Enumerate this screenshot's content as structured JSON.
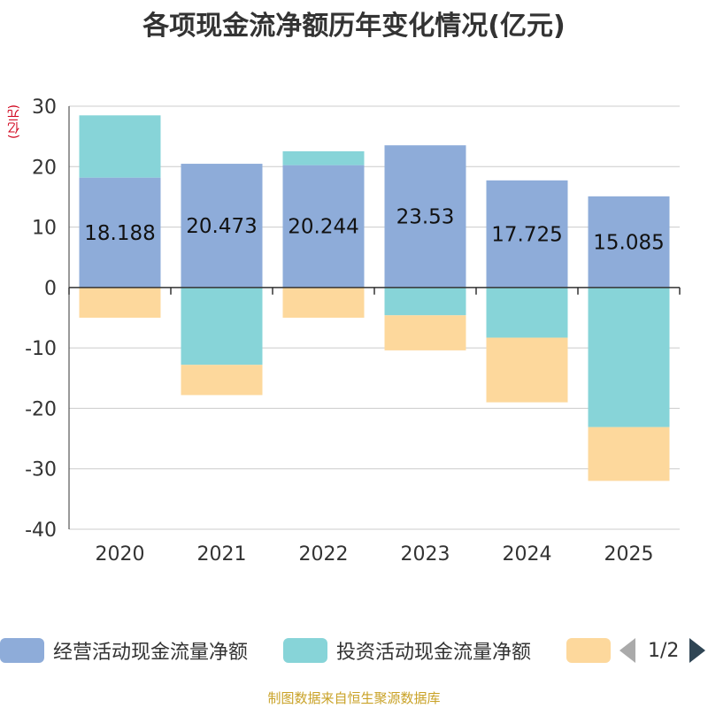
{
  "chart_data": {
    "type": "bar",
    "stacked": true,
    "title": "各项现金流净额历年变化情况(亿元)",
    "ylabel": "(亿元)",
    "xlabel": "",
    "ylim": [
      -40,
      30
    ],
    "yticks": [
      30,
      20,
      10,
      0,
      -10,
      -20,
      -30,
      -40
    ],
    "categories": [
      "2020",
      "2021",
      "2022",
      "2023",
      "2024",
      "2025"
    ],
    "series": [
      {
        "name": "经营活动现金流量净额",
        "color": "#8eacd9",
        "values": [
          18.188,
          20.473,
          20.244,
          23.53,
          17.725,
          15.085
        ],
        "labels": [
          "18.188",
          "20.473",
          "20.244",
          "23.53",
          "17.725",
          "15.085"
        ]
      },
      {
        "name": "投资活动现金流量净额",
        "color": "#87d4d8",
        "values": [
          10.3,
          -12.8,
          2.3,
          -4.6,
          -8.3,
          -23.1
        ]
      },
      {
        "name": "",
        "color": "#fdd89c",
        "values": [
          -5.0,
          -5.0,
          -5.0,
          -5.8,
          -10.7,
          -8.9
        ]
      }
    ],
    "legend_position": "bottom",
    "grid": true
  },
  "legend": {
    "items": [
      {
        "label": "经营活动现金流量净额",
        "color": "#8eacd9"
      },
      {
        "label": "投资活动现金流量净额",
        "color": "#87d4d8"
      },
      {
        "label": "",
        "color": "#fdd89c"
      }
    ],
    "page": "1/2"
  },
  "footer": {
    "source": "制图数据来自恒生聚源数据库"
  }
}
